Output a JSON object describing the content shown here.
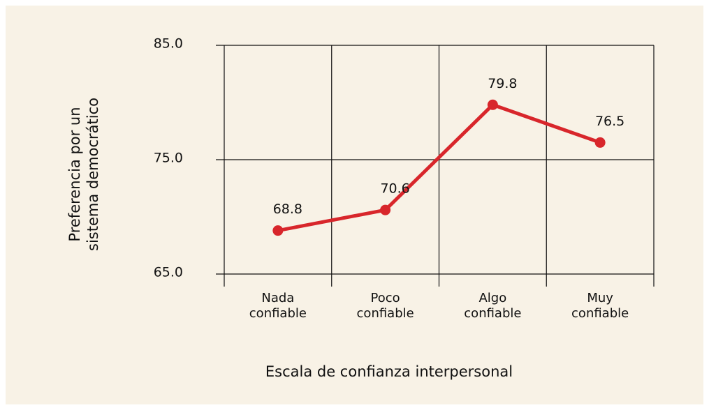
{
  "chart_data": {
    "type": "line",
    "x_label": "Escala de confianza interpersonal",
    "y_label": "Preferencia por un sistema democrático",
    "categories": [
      "Nada confiable",
      "Poco confiable",
      "Algo confiable",
      "Muy confiable"
    ],
    "series": [
      {
        "color": "#d8262b",
        "values": [
          68.8,
          70.6,
          79.8,
          76.5
        ]
      }
    ],
    "ylim": [
      65,
      85
    ],
    "yticks": [
      {
        "value": 65,
        "label": "65.0"
      },
      {
        "value": 75,
        "label": "75.0"
      },
      {
        "value": 85,
        "label": "85.0"
      }
    ],
    "grid": true
  }
}
